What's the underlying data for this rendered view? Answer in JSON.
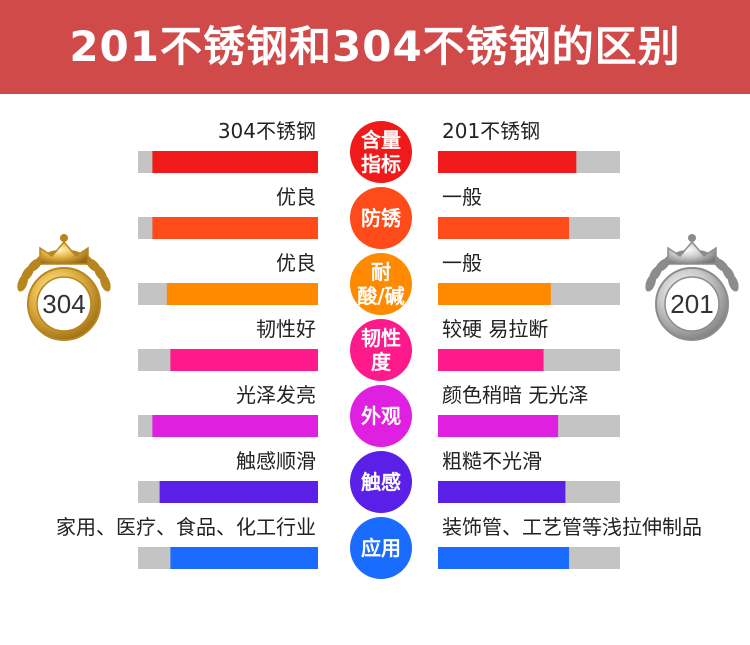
{
  "title": "201不锈钢和304不锈钢的区别",
  "chart_data": {
    "type": "bar",
    "series": [
      {
        "name": "304不锈钢",
        "values": [
          0.92,
          0.92,
          0.84,
          0.82,
          0.92,
          0.88,
          0.82
        ]
      },
      {
        "name": "201不锈钢",
        "values": [
          0.76,
          0.72,
          0.62,
          0.58,
          0.66,
          0.7,
          0.72
        ]
      }
    ],
    "categories": [
      {
        "label": [
          "含量",
          "指标"
        ],
        "color": "#f01a1a"
      },
      {
        "label": [
          "防锈"
        ],
        "color": "#ff4a1a"
      },
      {
        "label": [
          "耐",
          "酸/碱"
        ],
        "color": "#ff8a00"
      },
      {
        "label": [
          "韧性",
          "度"
        ],
        "color": "#ff1a8c"
      },
      {
        "label": [
          "外观"
        ],
        "color": "#e020e0"
      },
      {
        "label": [
          "触感"
        ],
        "color": "#5a20e8"
      },
      {
        "label": [
          "应用"
        ],
        "color": "#1a6cff"
      }
    ],
    "left_labels": [
      "304不锈钢",
      "优良",
      "优良",
      "韧性好",
      "光泽发亮",
      "触感顺滑",
      "家用、医疗、食品、化工行业"
    ],
    "right_labels": [
      "201不锈钢",
      "一般",
      "一般",
      "较硬 易拉断",
      "颜色稍暗 无光泽",
      "粗糙不光滑",
      "装饰管、工艺管等浅拉伸制品"
    ],
    "track_color": "#c4c4c4",
    "medals": [
      {
        "text": "304",
        "style": "gold"
      },
      {
        "text": "201",
        "style": "silver"
      }
    ]
  }
}
